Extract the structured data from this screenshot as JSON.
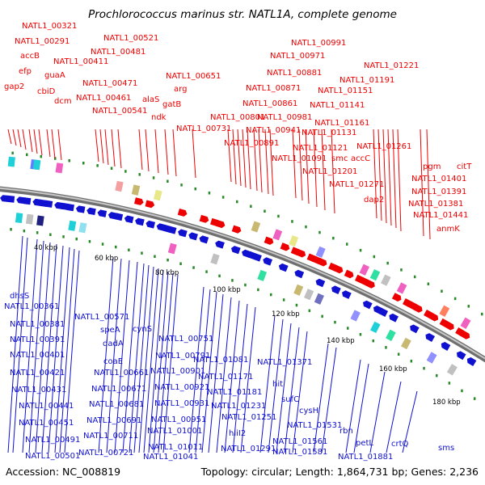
{
  "title": "Prochlorococcus marinus str. NATL1A, complete genome",
  "footer": {
    "accession": "Accession: NC_008819",
    "summary": "Topology: circular; Length: 1,864,731 bp; Genes: 2,236"
  },
  "colors": {
    "forward": "#ee0000",
    "reverse": "#1010d0",
    "backbone": "#8c8c8c",
    "gc_marker": "#2a8a2a"
  },
  "forward_labels": [
    "NATL1_00321",
    "NATL1_00291",
    "accB",
    "efp",
    "guaA",
    "cbiD",
    "gap2",
    "dcm",
    "NATL1_00411",
    "NATL1_00521",
    "NATL1_00481",
    "NATL1_00471",
    "NATL1_00461",
    "NATL1_00541",
    "alaS",
    "gatB",
    "ndk",
    "arg",
    "NATL1_00651",
    "NATL1_00731",
    "NATL1_00801",
    "NATL1_00991",
    "NATL1_00971",
    "NATL1_00881",
    "NATL1_00871",
    "NATL1_00861",
    "NATL1_00981",
    "NATL1_00941",
    "NATL1_00891",
    "NATL1_01091",
    "NATL1_01131",
    "NATL1_01121",
    "NATL1_01201",
    "NATL1_01221",
    "NATL1_01191",
    "NATL1_01151",
    "NATL1_01141",
    "NATL1_01161",
    "smc",
    "accC",
    "NATL1_01261",
    "NATL1_01271",
    "dap2",
    "pgm",
    "citT",
    "NATL1_01401",
    "NATL1_01391",
    "NATL1_01381",
    "NATL1_01441",
    "anmK"
  ],
  "reverse_labels": [
    "dhsS",
    "NATL1_00361",
    "NATL1_00381",
    "NATL1_00391",
    "NATL1_00401",
    "NATL1_00421",
    "NATL1_00431",
    "NATL1_00441",
    "NATL1_00451",
    "NATL1_00491",
    "NATL1_00501",
    "NATL1_00571",
    "speA",
    "cynS",
    "dadA",
    "coaE",
    "NATL1_00661",
    "NATL1_00671",
    "NATL1_00681",
    "NATL1_00691",
    "NATL1_00711",
    "NATL1_00721",
    "NATL1_00751",
    "NATL1_00791",
    "NATL1_00901",
    "NATL1_00921",
    "NATL1_00931",
    "NATL1_00951",
    "NATL1_01001",
    "NATL1_01011",
    "NATL1_01041",
    "NATL1_01081",
    "NATL1_01171",
    "NATL1_01181",
    "NATL1_01231",
    "NATL1_01251",
    "hliI2",
    "NATL1_01291",
    "NATL1_01371",
    "hit",
    "sufC",
    "cysH",
    "NATL1_01531",
    "rbn",
    "NATL1_01561",
    "NATL1_01581",
    "petL",
    "crtQ",
    "NATL1_01881",
    "sms"
  ],
  "scale_ticks": [
    "40 kbp",
    "60 kbp",
    "80 kbp",
    "100 kbp",
    "120 kbp",
    "140 kbp",
    "160 kbp",
    "180 kbp"
  ]
}
